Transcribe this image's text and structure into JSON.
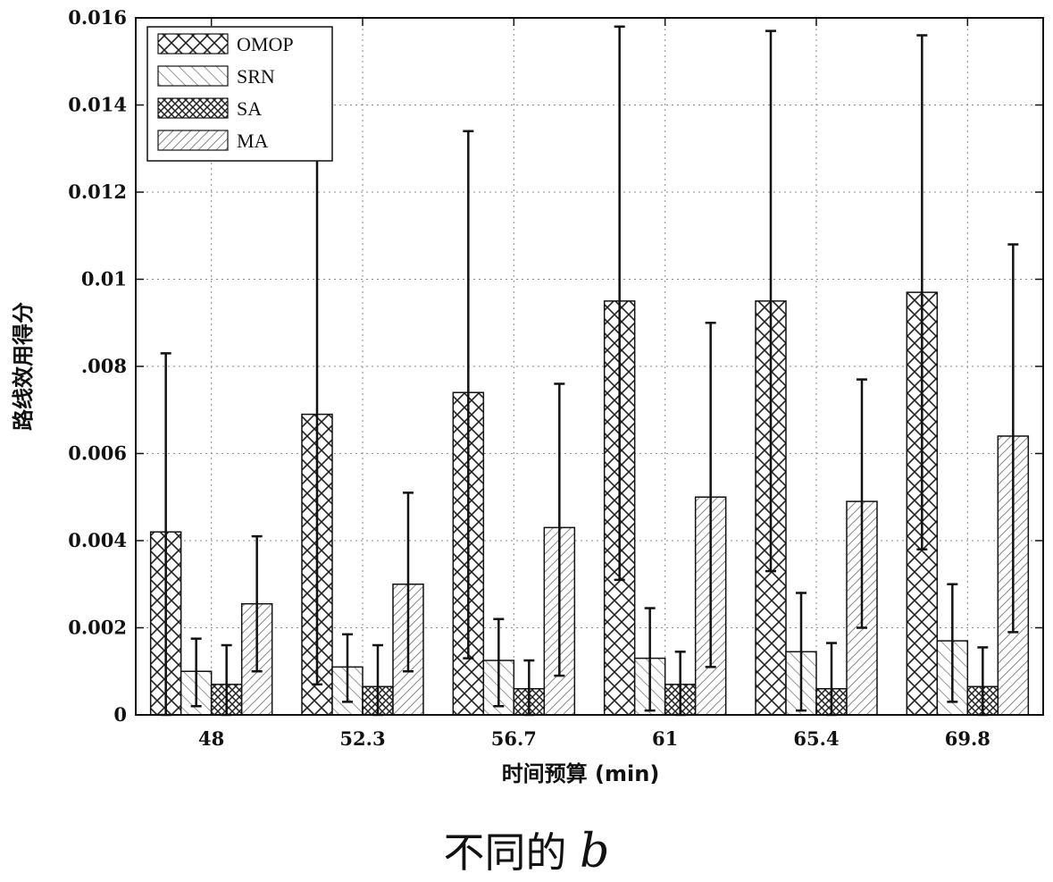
{
  "chart_data": {
    "type": "bar",
    "categories": [
      "48",
      "52.3",
      "56.7",
      "61",
      "65.4",
      "69.8"
    ],
    "xlabel": "时间预算 (min)",
    "ylabel": "路线效用得分",
    "ylim": [
      0,
      0.016
    ],
    "y_ticks": [
      "0",
      "0.002",
      "0.004",
      "0.006",
      ".008",
      "0.01",
      "0.012",
      "0.014",
      "0.016"
    ],
    "y_tick_values": [
      0,
      0.002,
      0.004,
      0.006,
      0.008,
      0.01,
      0.012,
      0.014,
      0.016
    ],
    "grid": true,
    "legend_position": "top-left",
    "series": [
      {
        "name": "OMOP",
        "pattern": "crosshatch",
        "values": [
          0.0042,
          0.0069,
          0.0074,
          0.0095,
          0.0095,
          0.0097
        ],
        "err_low": [
          0.0,
          0.0007,
          0.0013,
          0.0031,
          0.0033,
          0.0038
        ],
        "err_high": [
          0.0083,
          0.013,
          0.0134,
          0.0158,
          0.0157,
          0.0156
        ]
      },
      {
        "name": "SRN",
        "pattern": "sparse-diagonal",
        "values": [
          0.001,
          0.0011,
          0.00125,
          0.0013,
          0.00145,
          0.0017
        ],
        "err_low": [
          0.0002,
          0.0003,
          0.0002,
          0.0001,
          0.0001,
          0.0003
        ],
        "err_high": [
          0.00175,
          0.00185,
          0.0022,
          0.00245,
          0.0028,
          0.003
        ]
      },
      {
        "name": "SA",
        "pattern": "dense-crosshatch",
        "values": [
          0.0007,
          0.00065,
          0.0006,
          0.0007,
          0.0006,
          0.00065
        ],
        "err_low": [
          0.0,
          0.0,
          0.0,
          0.0,
          0.0,
          0.0
        ],
        "err_high": [
          0.0016,
          0.0016,
          0.00125,
          0.00145,
          0.00165,
          0.00155
        ]
      },
      {
        "name": "MA",
        "pattern": "diagonal",
        "values": [
          0.00255,
          0.003,
          0.0043,
          0.005,
          0.0049,
          0.0064
        ],
        "err_low": [
          0.001,
          0.001,
          0.0009,
          0.0011,
          0.002,
          0.0019
        ],
        "err_high": [
          0.0041,
          0.0051,
          0.0076,
          0.009,
          0.0077,
          0.0108
        ]
      }
    ]
  },
  "caption": {
    "text": "不同的 ",
    "variable": "b"
  }
}
